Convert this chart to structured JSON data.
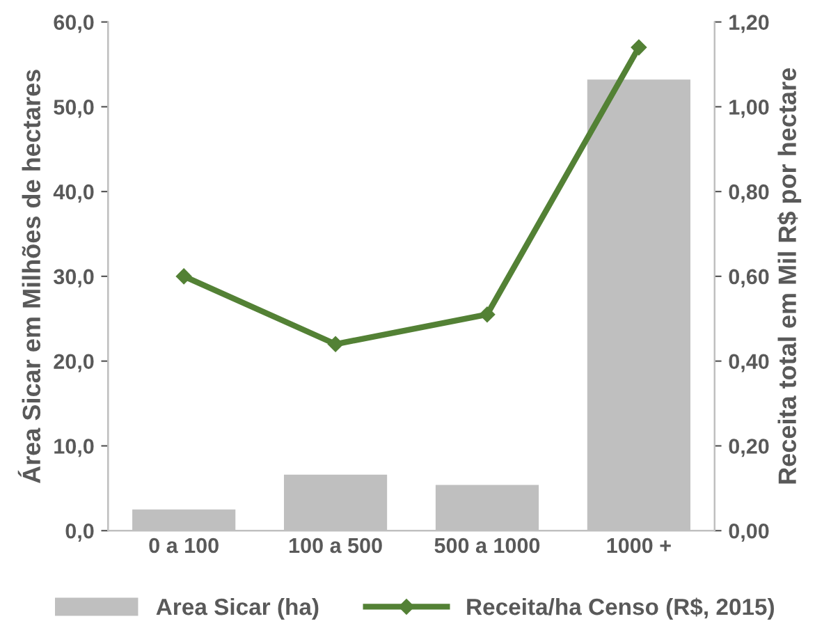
{
  "chart_data": {
    "type": "bar",
    "categories": [
      "0 a 100",
      "100 a 500",
      "500 a 1000",
      "1000 +"
    ],
    "series": [
      {
        "name": "Area Sicar (ha)",
        "color": "#bfbfbf",
        "values": [
          2.5,
          6.6,
          5.4,
          53.2
        ]
      },
      {
        "name": "Receita/ha Censo (R$, 2015)",
        "type": "line",
        "axis": "y2",
        "color": "#538135",
        "marker": "diamond",
        "values": [
          0.6,
          0.44,
          0.51,
          1.14
        ]
      }
    ],
    "ylabel": "Área Sicar em Milhões de hectares",
    "y2label": "Receita total em Mil R$ por hectare",
    "ylim": [
      0,
      60
    ],
    "yticks": [
      {
        "value": 0,
        "label": "0,0"
      },
      {
        "value": 10,
        "label": "10,0"
      },
      {
        "value": 20,
        "label": "20,0"
      },
      {
        "value": 30,
        "label": "30,0"
      },
      {
        "value": 40,
        "label": "40,0"
      },
      {
        "value": 50,
        "label": "50,0"
      },
      {
        "value": 60,
        "label": "60,0"
      }
    ],
    "y2lim": [
      0,
      1.2
    ],
    "y2ticks": [
      {
        "value": 0,
        "label": "0,00"
      },
      {
        "value": 0.2,
        "label": "0,20"
      },
      {
        "value": 0.4,
        "label": "0,40"
      },
      {
        "value": 0.6,
        "label": "0,60"
      },
      {
        "value": 0.8,
        "label": "0,80"
      },
      {
        "value": 1.0,
        "label": "1,00"
      },
      {
        "value": 1.2,
        "label": "1,20"
      }
    ],
    "grid": false,
    "legend": "bottom"
  }
}
